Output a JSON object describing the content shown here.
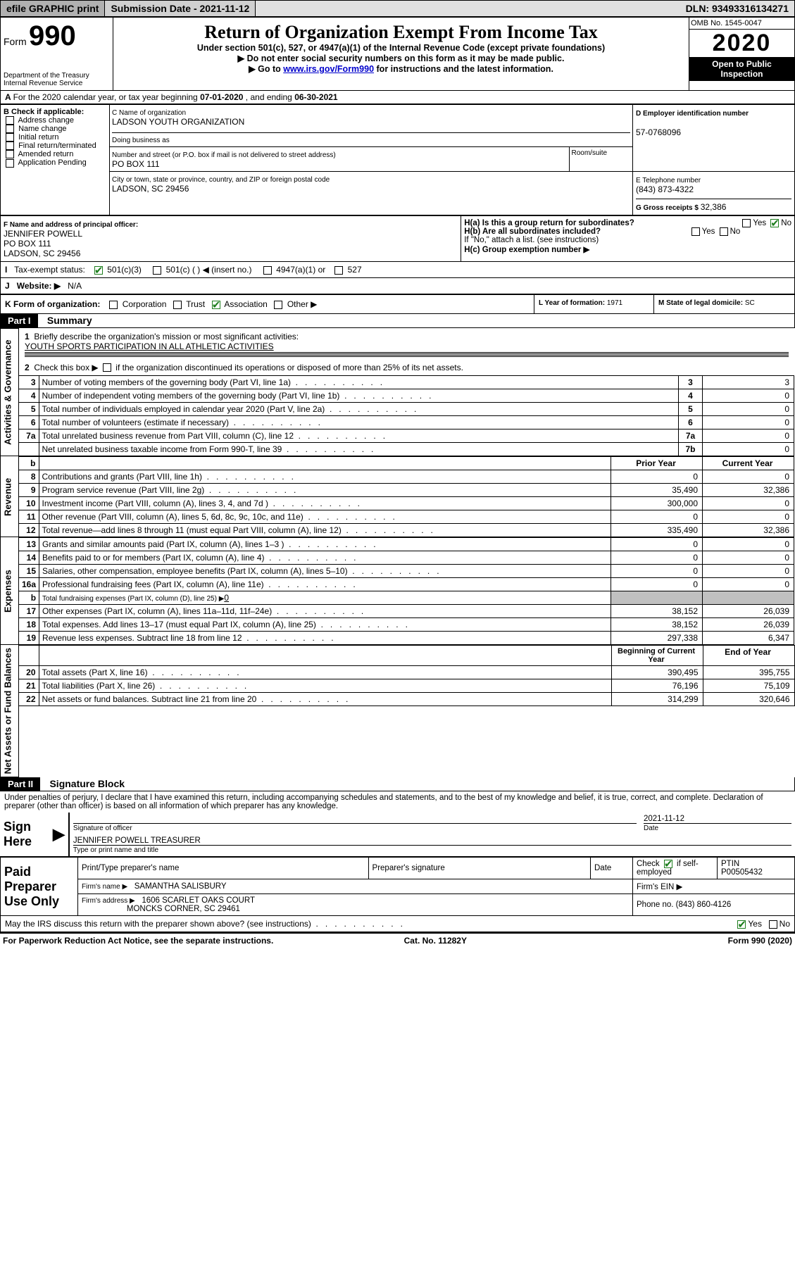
{
  "topbar": {
    "efile": "efile GRAPHIC print",
    "subdate_label": "Submission Date - ",
    "subdate": "2021-11-12",
    "dln_label": "DLN: ",
    "dln": "93493316134271"
  },
  "header": {
    "form_word": "Form",
    "form_no": "990",
    "dept1": "Department of the Treasury",
    "dept2": "Internal Revenue Service",
    "title": "Return of Organization Exempt From Income Tax",
    "sub1": "Under section 501(c), 527, or 4947(a)(1) of the Internal Revenue Code (except private foundations)",
    "sub2": "Do not enter social security numbers on this form as it may be made public.",
    "sub3_pre": "Go to ",
    "sub3_link": "www.irs.gov/Form990",
    "sub3_post": " for instructions and the latest information.",
    "omb": "OMB No. 1545-0047",
    "year": "2020",
    "open": "Open to Public Inspection"
  },
  "periodA": {
    "text_pre": "For the 2020 calendar year, or tax year beginning ",
    "begin": "07-01-2020",
    "mid": " , and ending ",
    "end": "06-30-2021"
  },
  "boxB": {
    "title": "B Check if applicable:",
    "items": [
      "Address change",
      "Name change",
      "Initial return",
      "Final return/terminated",
      "Amended return",
      "Application Pending"
    ]
  },
  "boxC": {
    "label": "C Name of organization",
    "org": "LADSON YOUTH ORGANIZATION",
    "dba_label": "Doing business as",
    "street_label": "Number and street (or P.O. box if mail is not delivered to street address)",
    "room_label": "Room/suite",
    "street": "PO BOX 111",
    "city_label": "City or town, state or province, country, and ZIP or foreign postal code",
    "city": "LADSON, SC  29456"
  },
  "boxD": {
    "label": "D Employer identification number",
    "value": "57-0768096"
  },
  "boxE": {
    "label": "E Telephone number",
    "value": "(843) 873-4322"
  },
  "boxG": {
    "label": "G Gross receipts $ ",
    "value": "32,386"
  },
  "boxF": {
    "label": "F  Name and address of principal officer:",
    "name": "JENNIFER POWELL",
    "addr1": "PO BOX 111",
    "addr2": "LADSON, SC  29456"
  },
  "boxH": {
    "a": "H(a)  Is this a group return for subordinates?",
    "b": "H(b)  Are all subordinates included?",
    "b_note": "If \"No,\" attach a list. (see instructions)",
    "c": "H(c)  Group exemption number ▶",
    "yes": "Yes",
    "no": "No"
  },
  "rowI": {
    "label": "Tax-exempt status:",
    "o1": "501(c)(3)",
    "o2": "501(c) (   ) ◀ (insert no.)",
    "o3": "4947(a)(1) or",
    "o4": "527"
  },
  "rowJ": {
    "label": "Website: ▶",
    "value": "N/A"
  },
  "rowK": {
    "label": "K Form of organization:",
    "o1": "Corporation",
    "o2": "Trust",
    "o3": "Association",
    "o4": "Other ▶"
  },
  "boxL": {
    "label": "L Year of formation: ",
    "value": "1971"
  },
  "boxM": {
    "label": "M State of legal domicile: ",
    "value": "SC"
  },
  "part1": {
    "tag": "Part I",
    "title": "Summary"
  },
  "sec_labels": {
    "ag": "Activities & Governance",
    "rev": "Revenue",
    "exp": "Expenses",
    "na": "Net Assets or Fund Balances"
  },
  "l1": {
    "num": "1",
    "text": "Briefly describe the organization's mission or most significant activities:",
    "val": "YOUTH SPORTS PARTICIPATION IN ALL ATHLETIC ACTIVITIES"
  },
  "l2": {
    "num": "2",
    "text": "Check this box ▶         if the organization discontinued its operations or disposed of more than 25% of its net assets."
  },
  "lines_ag": [
    {
      "n": "3",
      "d": "Number of voting members of the governing body (Part VI, line 1a)",
      "b": "3",
      "v": "3"
    },
    {
      "n": "4",
      "d": "Number of independent voting members of the governing body (Part VI, line 1b)",
      "b": "4",
      "v": "0"
    },
    {
      "n": "5",
      "d": "Total number of individuals employed in calendar year 2020 (Part V, line 2a)",
      "b": "5",
      "v": "0"
    },
    {
      "n": "6",
      "d": "Total number of volunteers (estimate if necessary)",
      "b": "6",
      "v": "0"
    },
    {
      "n": "7a",
      "d": "Total unrelated business revenue from Part VIII, column (C), line 12",
      "b": "7a",
      "v": "0"
    },
    {
      "n": "",
      "d": "Net unrelated business taxable income from Form 990-T, line 39",
      "b": "7b",
      "v": "0"
    }
  ],
  "col_hdr": {
    "b": "b",
    "py": "Prior Year",
    "cy": "Current Year"
  },
  "lines_rev": [
    {
      "n": "8",
      "d": "Contributions and grants (Part VIII, line 1h)",
      "py": "0",
      "cy": "0"
    },
    {
      "n": "9",
      "d": "Program service revenue (Part VIII, line 2g)",
      "py": "35,490",
      "cy": "32,386"
    },
    {
      "n": "10",
      "d": "Investment income (Part VIII, column (A), lines 3, 4, and 7d )",
      "py": "300,000",
      "cy": "0"
    },
    {
      "n": "11",
      "d": "Other revenue (Part VIII, column (A), lines 5, 6d, 8c, 9c, 10c, and 11e)",
      "py": "0",
      "cy": "0"
    },
    {
      "n": "12",
      "d": "Total revenue—add lines 8 through 11 (must equal Part VIII, column (A), line 12)",
      "py": "335,490",
      "cy": "32,386"
    }
  ],
  "lines_exp": [
    {
      "n": "13",
      "d": "Grants and similar amounts paid (Part IX, column (A), lines 1–3 )",
      "py": "0",
      "cy": "0"
    },
    {
      "n": "14",
      "d": "Benefits paid to or for members (Part IX, column (A), line 4)",
      "py": "0",
      "cy": "0"
    },
    {
      "n": "15",
      "d": "Salaries, other compensation, employee benefits (Part IX, column (A), lines 5–10)",
      "py": "0",
      "cy": "0"
    },
    {
      "n": "16a",
      "d": "Professional fundraising fees (Part IX, column (A), line 11e)",
      "py": "0",
      "cy": "0"
    }
  ],
  "line16b": {
    "n": "b",
    "d": "Total fundraising expenses (Part IX, column (D), line 25) ▶",
    "v": "0"
  },
  "lines_exp2": [
    {
      "n": "17",
      "d": "Other expenses (Part IX, column (A), lines 11a–11d, 11f–24e)",
      "py": "38,152",
      "cy": "26,039"
    },
    {
      "n": "18",
      "d": "Total expenses. Add lines 13–17 (must equal Part IX, column (A), line 25)",
      "py": "38,152",
      "cy": "26,039"
    },
    {
      "n": "19",
      "d": "Revenue less expenses. Subtract line 18 from line 12",
      "py": "297,338",
      "cy": "6,347"
    }
  ],
  "col_hdr2": {
    "py": "Beginning of Current Year",
    "cy": "End of Year"
  },
  "lines_na": [
    {
      "n": "20",
      "d": "Total assets (Part X, line 16)",
      "py": "390,495",
      "cy": "395,755"
    },
    {
      "n": "21",
      "d": "Total liabilities (Part X, line 26)",
      "py": "76,196",
      "cy": "75,109"
    },
    {
      "n": "22",
      "d": "Net assets or fund balances. Subtract line 21 from line 20",
      "py": "314,299",
      "cy": "320,646"
    }
  ],
  "part2": {
    "tag": "Part II",
    "title": "Signature Block"
  },
  "perjury": "Under penalties of perjury, I declare that I have examined this return, including accompanying schedules and statements, and to the best of my knowledge and belief, it is true, correct, and complete. Declaration of preparer (other than officer) is based on all information of which preparer has any knowledge.",
  "sign": {
    "here": "Sign Here",
    "sig_of": "Signature of officer",
    "date_lbl": "Date",
    "date": "2021-11-12",
    "name": "JENNIFER POWELL TREASURER",
    "type_lbl": "Type or print name and title"
  },
  "paid": {
    "title": "Paid Preparer Use Only",
    "h1": "Print/Type preparer's name",
    "h2": "Preparer's signature",
    "h3": "Date",
    "h4_pre": "Check",
    "h4_post": "if self-employed",
    "h5": "PTIN",
    "ptin": "P00505432",
    "firm_lbl": "Firm's name    ▶",
    "firm": "SAMANTHA SALISBURY",
    "ein_lbl": "Firm's EIN ▶",
    "addr_lbl": "Firm's address ▶",
    "addr1": "1606 SCARLET OAKS COURT",
    "addr2": "MONCKS CORNER, SC  29461",
    "phone_lbl": "Phone no. ",
    "phone": "(843) 860-4126"
  },
  "discuss": {
    "text": "May the IRS discuss this return with the preparer shown above? (see instructions)",
    "yes": "Yes",
    "no": "No"
  },
  "footer": {
    "l": "For Paperwork Reduction Act Notice, see the separate instructions.",
    "c": "Cat. No. 11282Y",
    "r": "Form 990 (2020)"
  }
}
